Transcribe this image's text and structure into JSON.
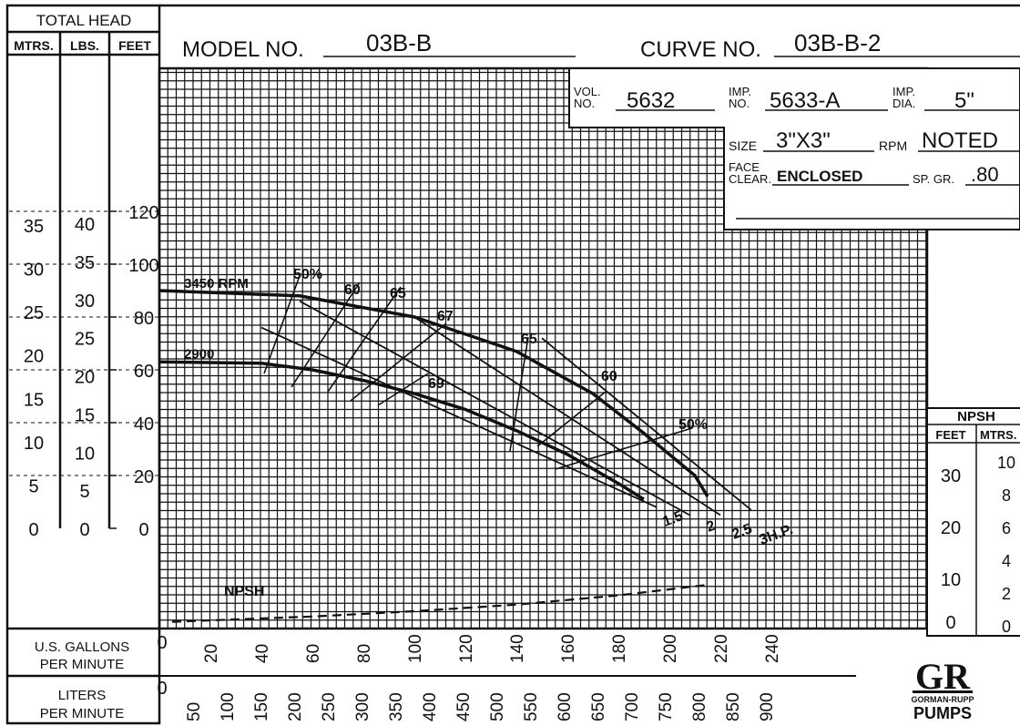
{
  "header": {
    "total_head": "TOTAL HEAD",
    "col_mtrs": "MTRS.",
    "col_lbs": "LBS.",
    "col_feet": "FEET",
    "model_label": "MODEL NO.",
    "model_value": "03B-B",
    "curve_label": "CURVE NO.",
    "curve_value": "03B-B-2"
  },
  "spec_box": {
    "vol_label": "VOL. NO.",
    "vol_value": "5632",
    "imp_no_label": "IMP. NO.",
    "imp_no_value": "5633-A",
    "imp_dia_label": "IMP. DIA.",
    "imp_dia_value": "5\"",
    "size_label": "SIZE",
    "size_value": "3\"X3\"",
    "rpm_label": "RPM",
    "rpm_value": "NOTED",
    "face_clear_label": "FACE CLEAR.",
    "face_clear_value": "ENCLOSED",
    "sp_gr_label": "SP. GR.",
    "sp_gr_value": ".80"
  },
  "left_scales": {
    "mtrs_ticks": [
      "0",
      "5",
      "10",
      "15",
      "20",
      "25",
      "30",
      "35"
    ],
    "lbs_ticks": [
      "0",
      "5",
      "10",
      "15",
      "20",
      "25",
      "30",
      "35",
      "40"
    ],
    "feet_ticks": [
      "0",
      "20",
      "40",
      "60",
      "80",
      "100",
      "120"
    ]
  },
  "npsh_scale": {
    "title": "NPSH",
    "col_feet": "FEET",
    "col_mtrs": "MTRS.",
    "feet_ticks": [
      "10",
      "20",
      "30"
    ],
    "mtrs_ticks": [
      "0",
      "2",
      "4",
      "6",
      "8",
      "10"
    ],
    "feet_zero": "0"
  },
  "bottom_scales": {
    "gpm_label_line1": "U.S. GALLONS",
    "gpm_label_line2": "PER MINUTE",
    "lpm_label_line1": "LITERS",
    "lpm_label_line2": "PER MINUTE",
    "gpm_zero": "0",
    "gpm_ticks": [
      "20",
      "40",
      "60",
      "80",
      "100",
      "120",
      "140",
      "160",
      "180",
      "200",
      "220",
      "240"
    ],
    "lpm_zero": "0",
    "lpm_ticks": [
      "50",
      "100",
      "150",
      "200",
      "250",
      "300",
      "350",
      "400",
      "450",
      "500",
      "550",
      "600",
      "650",
      "700",
      "750",
      "800",
      "850",
      "900"
    ]
  },
  "logo": {
    "mark": "GR",
    "line1": "GORMAN-RUPP",
    "line2": "PUMPS"
  },
  "chart_data": {
    "type": "line",
    "xlabel": "U.S. GALLONS PER MINUTE",
    "ylabel": "TOTAL HEAD",
    "xlim": [
      0,
      285
    ],
    "ylim": [
      0,
      150
    ],
    "series": [
      {
        "name": "3450 RPM",
        "x": [
          0,
          55,
          100,
          140,
          170,
          190,
          210,
          215
        ],
        "y": [
          90,
          88,
          80,
          67,
          51,
          36,
          20,
          12
        ]
      },
      {
        "name": "2900",
        "x": [
          0,
          40,
          60,
          80,
          100,
          120,
          140,
          160,
          180,
          190
        ],
        "y": [
          63,
          62.5,
          60,
          56,
          51,
          45,
          37,
          28,
          17,
          11
        ]
      }
    ],
    "hp_lines": [
      {
        "label": "1.5",
        "x": [
          40,
          195
        ],
        "y": [
          76,
          8
        ]
      },
      {
        "label": "2",
        "x": [
          55,
          208
        ],
        "y": [
          86,
          5
        ]
      },
      {
        "label": "2.5",
        "x": [
          100,
          220
        ],
        "y": [
          80,
          5
        ]
      },
      {
        "label": "3H.P.",
        "x": [
          150,
          232
        ],
        "y": [
          72,
          7
        ]
      }
    ],
    "efficiency_labels": [
      "50%",
      "60",
      "65",
      "67",
      "69",
      "65",
      "60",
      "50%"
    ],
    "npsh": {
      "name": "NPSH",
      "x": [
        5,
        60,
        100,
        140,
        180,
        215
      ],
      "y": [
        6,
        8,
        10,
        12.5,
        16,
        20
      ]
    },
    "speed_labels": [
      "3450 RPM",
      "2900"
    ]
  }
}
